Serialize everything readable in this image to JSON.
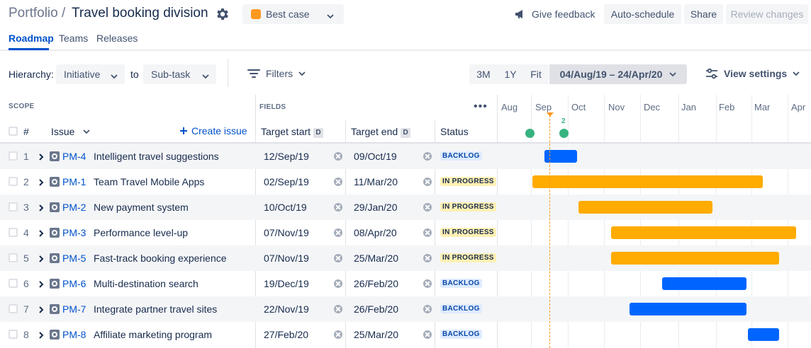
{
  "header": {
    "breadcrumb": "Portfolio /",
    "title": "Travel booking division",
    "scenario": {
      "label": "Best case",
      "color": "#FF991F"
    },
    "feedback_label": "Give feedback",
    "auto_schedule_label": "Auto-schedule",
    "share_label": "Share",
    "review_label": "Review changes"
  },
  "tabs": [
    {
      "label": "Roadmap",
      "active": true
    },
    {
      "label": "Teams",
      "active": false
    },
    {
      "label": "Releases",
      "active": false
    }
  ],
  "toolbar": {
    "hierarchy_label": "Hierarchy:",
    "hierarchy_from": "Initiative",
    "to_label": "to",
    "hierarchy_to": "Sub-task",
    "filters_label": "Filters",
    "zoom": [
      "3M",
      "1Y",
      "Fit"
    ],
    "date_range": "04/Aug/19 – 24/Apr/20",
    "view_settings_label": "View settings"
  },
  "grid": {
    "scope_label": "SCOPE",
    "fields_label": "FIELDS",
    "num_header": "#",
    "issue_header": "Issue",
    "create_issue_label": "Create issue",
    "target_start_header": "Target start",
    "target_end_header": "Target end",
    "status_header": "Status",
    "badge": "D"
  },
  "timeline": {
    "months": [
      "Aug",
      "Sep",
      "Oct",
      "Nov",
      "Dec",
      "Jan",
      "Feb",
      "Mar",
      "Apr"
    ],
    "release_count": "2",
    "colors": {
      "backlog": "#0065FF",
      "in_progress": "#FFAB00"
    }
  },
  "rows": [
    {
      "num": "1",
      "key": "PM-4",
      "summary": "Intelligent travel suggestions",
      "start": "12/Sep/19",
      "end": "09/Oct/19",
      "status": "BACKLOG"
    },
    {
      "num": "2",
      "key": "PM-1",
      "summary": "Team Travel Mobile Apps",
      "start": "02/Sep/19",
      "end": "11/Mar/20",
      "status": "IN PROGRESS"
    },
    {
      "num": "3",
      "key": "PM-2",
      "summary": "New payment system",
      "start": "10/Oct/19",
      "end": "29/Jan/20",
      "status": "IN PROGRESS"
    },
    {
      "num": "4",
      "key": "PM-3",
      "summary": "Performance level-up",
      "start": "07/Nov/19",
      "end": "08/Apr/20",
      "status": "IN PROGRESS"
    },
    {
      "num": "5",
      "key": "PM-5",
      "summary": "Fast-track booking experience",
      "start": "07/Nov/19",
      "end": "25/Mar/20",
      "status": "IN PROGRESS"
    },
    {
      "num": "6",
      "key": "PM-6",
      "summary": "Multi-destination search",
      "start": "19/Dec/19",
      "end": "26/Feb/20",
      "status": "BACKLOG"
    },
    {
      "num": "7",
      "key": "PM-7",
      "summary": "Integrate partner travel sites",
      "start": "22/Nov/19",
      "end": "26/Feb/20",
      "status": "BACKLOG"
    },
    {
      "num": "8",
      "key": "PM-8",
      "summary": "Affiliate marketing program",
      "start": "27/Feb/20",
      "end": "25/Mar/20",
      "status": "BACKLOG"
    }
  ]
}
